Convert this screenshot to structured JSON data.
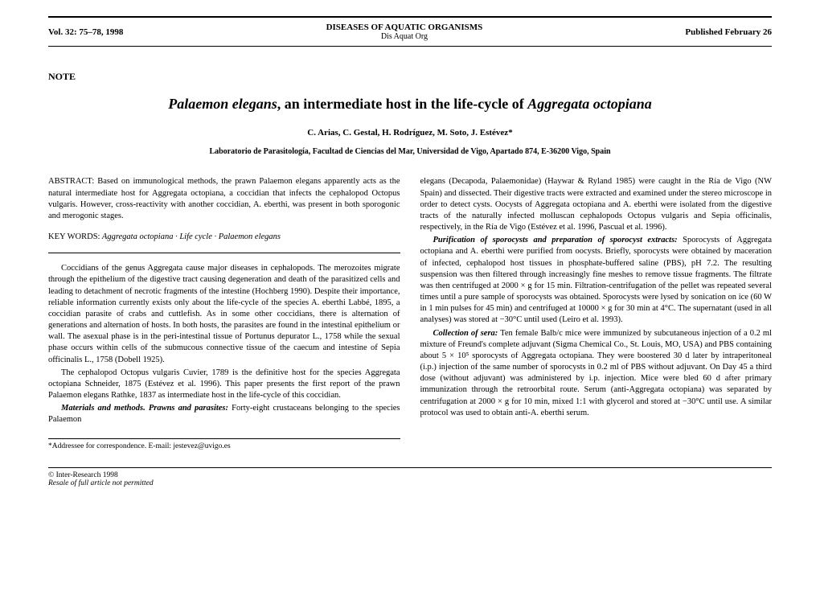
{
  "header": {
    "left": "Vol. 32: 75–78, 1998",
    "center_line1": "DISEASES OF AQUATIC ORGANISMS",
    "center_line2": "Dis Aquat Org",
    "right": "Published February 26"
  },
  "section_label": "NOTE",
  "title_part1": "Palaemon elegans",
  "title_part2": ", an intermediate host in the life-cycle of ",
  "title_part3": "Aggregata octopiana",
  "authors": "C. Arias, C. Gestal, H. Rodríguez, M. Soto, J. Estévez*",
  "affiliation": "Laboratorio de Parasitología, Facultad de Ciencias del Mar, Universidad de Vigo, Apartado 874, E-36200 Vigo, Spain",
  "abstract_label": "ABSTRACT:",
  "abstract_text": " Based on immunological methods, the prawn Palaemon elegans apparently acts as the natural intermediate host for Aggregata octopiana, a coccidian that infects the cephalopod Octopus vulgaris. However, cross-reactivity with another coccidian, A. eberthi, was present in both sporogonic and merogonic stages.",
  "keywords_label": "KEY WORDS:",
  "keywords_text": " Aggregata octopiana · Life cycle · Palaemon elegans",
  "left_col": {
    "p1": "Coccidians of the genus Aggregata cause major diseases in cephalopods. The merozoites migrate through the epithelium of the digestive tract causing degeneration and death of the parasitized cells and leading to detachment of necrotic fragments of the intestine (Hochberg 1990). Despite their importance, reliable information currently exists only about the life-cycle of the species A. eberthi Labbé, 1895, a coccidian parasite of crabs and cuttlefish. As in some other coccidians, there is alternation of generations and alternation of hosts. In both hosts, the parasites are found in the intestinal epithelium or wall. The asexual phase is in the peri-intestinal tissue of Portunus depurator L., 1758 while the sexual phase occurs within cells of the submucous connective tissue of the caecum and intestine of Sepia officinalis L., 1758 (Dobell 1925).",
    "p2": "The cephalopod Octopus vulgaris Cuvier, 1789 is the definitive host for the species Aggregata octopiana Schneider, 1875 (Estévez et al. 1996). This paper presents the first report of the prawn Palaemon elegans Rathke, 1837 as intermediate host in the life-cycle of this coccidian.",
    "materials_label": "Materials and methods.",
    "prawns_label": "Prawns and parasites:",
    "p3": " Forty-eight crustaceans belonging to the species Palaemon"
  },
  "correspondence": "*Addressee for correspondence. E-mail: jestevez@uvigo.es",
  "right_col": {
    "p1": "elegans (Decapoda, Palaemonidae) (Haywar & Ryland 1985) were caught in the Ría de Vigo (NW Spain) and dissected. Their digestive tracts were extracted and examined under the stereo microscope in order to detect cysts. Oocysts of Aggregata octopiana and A. eberthi were isolated from the digestive tracts of the naturally infected molluscan cephalopods Octopus vulgaris and Sepia officinalis, respectively, in the Ría de Vigo (Estévez et al. 1996, Pascual et al. 1996).",
    "purification_label": "Purification of sporocysts and preparation of sporocyst extracts:",
    "p2": " Sporocysts of Aggregata octopiana and A. eberthi were purified from oocysts. Briefly, sporocysts were obtained by maceration of infected, cephalopod host tissues in phosphate-buffered saline (PBS), pH 7.2. The resulting suspension was then filtered through increasingly fine meshes to remove tissue fragments. The filtrate was then centrifuged at 2000 × g for 15 min. Filtration-centrifugation of the pellet was repeated several times until a pure sample of sporocysts was obtained. Sporocysts were lysed by sonication on ice (60 W in 1 min pulses for 45 min) and centrifuged at 10000 × g for 30 min at 4°C. The supernatant (used in all analyses) was stored at −30°C until used (Leiro et al. 1993).",
    "collection_label": "Collection of sera:",
    "p3": " Ten female Balb/c mice were immunized by subcutaneous injection of a 0.2 ml mixture of Freund's complete adjuvant (Sigma Chemical Co., St. Louis, MO, USA) and PBS containing about 5 × 10⁵ sporocysts of Aggregata octopiana. They were boostered 30 d later by intraperitoneal (i.p.) injection of the same number of sporocysts in 0.2 ml of PBS without adjuvant. On Day 45 a third dose (without adjuvant) was administered by i.p. injection. Mice were bled 60 d after primary immunization through the retroorbital route. Serum (anti-Aggregata octopiana) was separated by centrifugation at 2000 × g for 10 min, mixed 1:1 with glycerol and stored at −30°C until use. A similar protocol was used to obtain anti-A. eberthi serum."
  },
  "footer": {
    "line1": "© Inter-Research 1998",
    "line2": "Resale of full article not permitted"
  }
}
